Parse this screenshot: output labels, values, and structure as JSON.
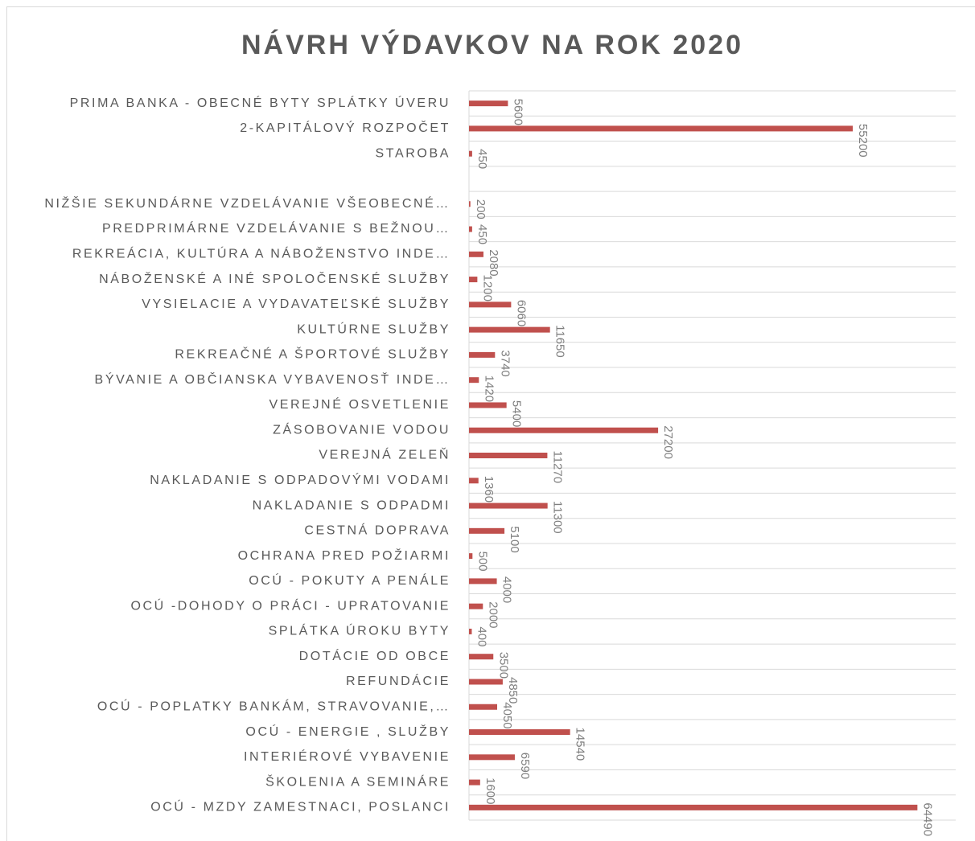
{
  "chart_data": {
    "type": "barh",
    "title": "NÁVRH VÝDAVKOV NA ROK 2020",
    "categories": [
      "PRIMA BANKA - OBECNÉ BYTY SPLÁTKY ÚVERU",
      "2-KAPITÁLOVÝ ROZPOČET",
      "STAROBA",
      null,
      "NIŽŠIE SEKUNDÁRNE VZDELÁVANIE VŠEOBECNÉ…",
      "PREDPRIMÁRNE VZDELÁVANIE S BEŽNOU…",
      "REKREÁCIA, KULTÚRA A NÁBOŽENSTVO INDE…",
      "NÁBOŽENSKÉ A INÉ SPOLOČENSKÉ SLUŽBY",
      "VYSIELACIE A VYDAVATEĽSKÉ SLUŽBY",
      "KULTÚRNE SLUŽBY",
      "REKREAČNÉ A ŠPORTOVÉ SLUŽBY",
      "BÝVANIE A OBČIANSKA VYBAVENOSŤ INDE…",
      "VEREJNÉ OSVETLENIE",
      "ZÁSOBOVANIE VODOU",
      "VEREJNÁ ZELEŇ",
      "NAKLADANIE S ODPADOVÝMI VODAMI",
      "NAKLADANIE S ODPADMI",
      "CESTNÁ DOPRAVA",
      "OCHRANA PRED POŽIARMI",
      "OCÚ - POKUTY A PENÁLE",
      "OCÚ -DOHODY O PRÁCI - UPRATOVANIE",
      "SPLÁTKA ÚROKU BYTY",
      "DOTÁCIE OD OBCE",
      "REFUNDÁCIE",
      "OCÚ - POPLATKY BANKÁM, STRAVOVANIE,…",
      "OCÚ - ENERGIE , SLUŽBY",
      "INTERIÉROVÉ VYBAVENIE",
      "ŠKOLENIA A SEMINÁRE",
      "OCÚ - MZDY ZAMESTNACI, POSLANCI"
    ],
    "values": [
      5600,
      55200,
      450,
      null,
      200,
      450,
      2080,
      1200,
      6060,
      11650,
      3740,
      1420,
      5400,
      27200,
      11270,
      1360,
      11300,
      5100,
      500,
      4000,
      2000,
      400,
      3500,
      4850,
      4050,
      14540,
      6590,
      1600,
      64490
    ],
    "color": "#c0504d",
    "xlim": [
      0,
      70000
    ]
  }
}
